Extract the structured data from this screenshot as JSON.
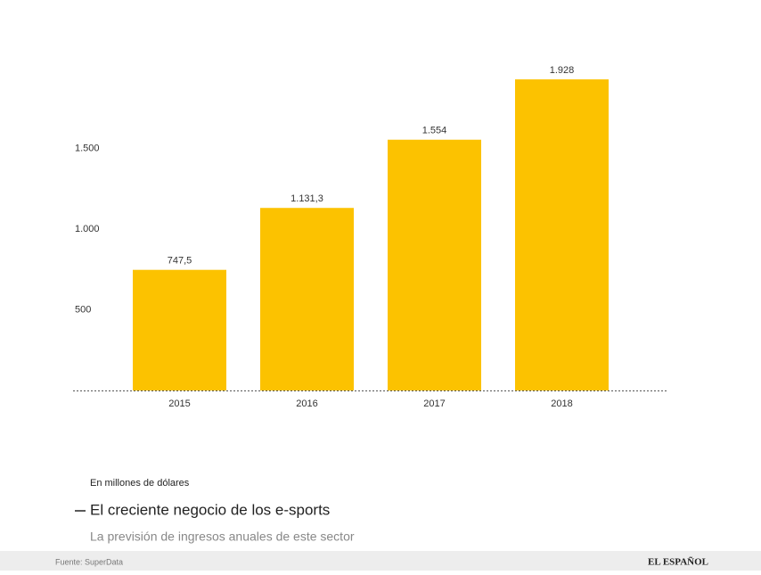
{
  "chart_data": {
    "type": "bar",
    "title": "El creciente negocio de los e-sports",
    "subtitle": "La previsión de ingresos anuales de este sector",
    "annotation": "En millones de dólares",
    "source": "Fuente: SuperData",
    "brand": "EL ESPAÑOL",
    "categories": [
      "2015",
      "2016",
      "2017",
      "2018"
    ],
    "values": [
      747.5,
      1131.3,
      1554,
      1928
    ],
    "value_labels": [
      "747,5",
      "1.131,3",
      "1.554",
      "1.928"
    ],
    "color": "#fcc200",
    "ylim": [
      0,
      2000
    ],
    "yticks": [
      500,
      {
        "value": 1000,
        "label": "1.000"
      },
      {
        "value": 1500,
        "label": "1.500"
      }
    ],
    "grid": false
  }
}
